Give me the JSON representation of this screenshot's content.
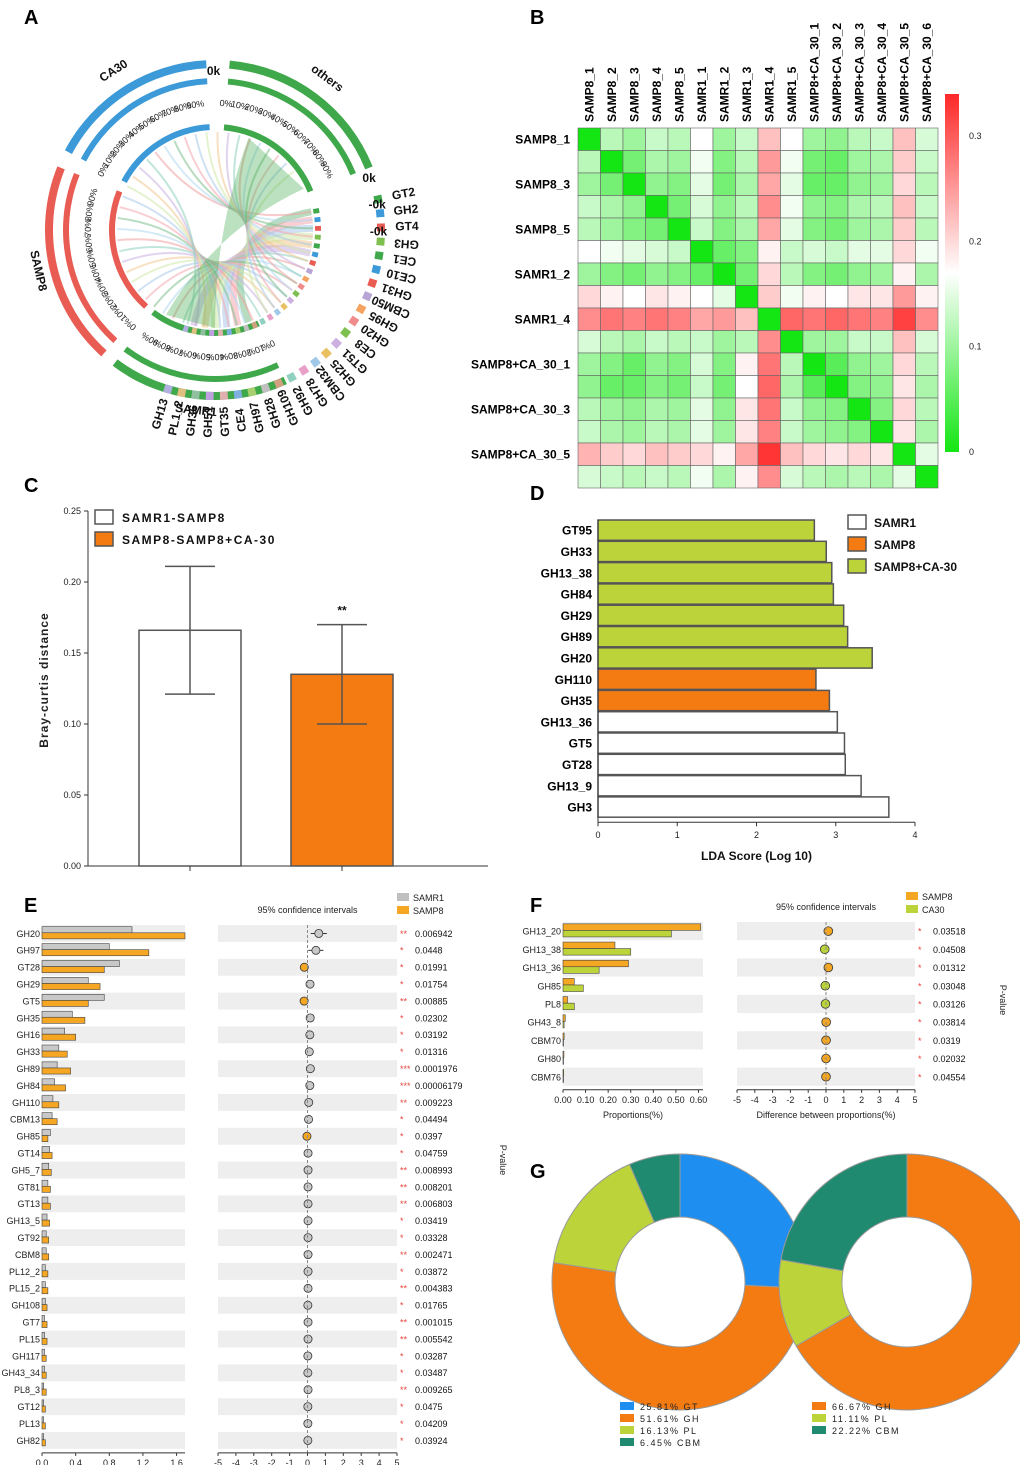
{
  "panel_labels": [
    "A",
    "B",
    "C",
    "D",
    "E",
    "F",
    "G"
  ],
  "chart_data": [
    {
      "id": "A",
      "type": "chord",
      "title": "",
      "segments": [
        {
          "name": "CA30",
          "color": "#3d9ad8"
        },
        {
          "name": "others",
          "color": "#3fa84a"
        },
        {
          "name": "SAMP8",
          "color": "#e85c54"
        },
        {
          "name": "SAMR1",
          "color": "#3fa84a"
        },
        {
          "name": "GT2",
          "color": "#3fa84a"
        },
        {
          "name": "GH2",
          "color": "#3d9ad8"
        },
        {
          "name": "GT4",
          "color": "#e85c54"
        },
        {
          "name": "GH3",
          "color": "#7ec050"
        },
        {
          "name": "CE1",
          "color": "#3fa84a"
        },
        {
          "name": "CE10",
          "color": "#3d9ad8"
        },
        {
          "name": "GH31",
          "color": "#e85c54"
        },
        {
          "name": "CBM50",
          "color": "#b9a4d6"
        },
        {
          "name": "GH95",
          "color": "#f4a460"
        },
        {
          "name": "GH20",
          "color": "#f08c8c"
        },
        {
          "name": "CE8",
          "color": "#7ec050"
        },
        {
          "name": "GT51",
          "color": "#cbb0e0"
        },
        {
          "name": "GH25",
          "color": "#e8c060"
        },
        {
          "name": "CBM32",
          "color": "#a0c8e8"
        },
        {
          "name": "GH78",
          "color": "#e8a0c8"
        },
        {
          "name": "GH92",
          "color": "#90d0c0"
        },
        {
          "name": "GH109",
          "color": "#d0a080"
        },
        {
          "name": "GH28",
          "color": "#c0c0c0"
        },
        {
          "name": "GH97",
          "color": "#a8d070"
        },
        {
          "name": "CE4",
          "color": "#80b0e0"
        },
        {
          "name": "GT35",
          "color": "#e0b0b0"
        },
        {
          "name": "GH51",
          "color": "#c0a0e0"
        },
        {
          "name": "GH36",
          "color": "#90c0a0"
        },
        {
          "name": "PL1_2",
          "color": "#e0c080"
        },
        {
          "name": "GH13",
          "color": "#b0b0e0"
        }
      ],
      "percent_ticks": [
        "0%",
        "10%",
        "20%",
        "30%",
        "40%",
        "50%",
        "60%",
        "70%",
        "80%",
        "90%"
      ],
      "zero_k": "0k",
      "minus_zero_k": "-0k"
    },
    {
      "id": "B",
      "type": "heatmap",
      "labels": [
        "SAMP8_1",
        "SAMP8_2",
        "SAMP8_3",
        "SAMP8_4",
        "SAMP8_5",
        "SAMR1_1",
        "SAMR1_2",
        "SAMR1_3",
        "SAMR1_4",
        "SAMR1_5",
        "SAMP8+CA_30_1",
        "SAMP8+CA_30_2",
        "SAMP8+CA_30_3",
        "SAMP8+CA_30_4",
        "SAMP8+CA_30_5",
        "SAMP8+CA_30_6"
      ],
      "row_labels_shown": [
        "SAMP8_1",
        "SAMP8_3",
        "SAMP8_5",
        "SAMR1_2",
        "SAMR1_4",
        "SAMP8+CA_30_1",
        "SAMP8+CA_30_3",
        "SAMP8+CA_30_5"
      ],
      "colorbar_ticks": [
        "0",
        "0.1",
        "0.2",
        "0.3"
      ],
      "vmin": 0,
      "vmax": 0.34,
      "values": [
        [
          0.0,
          0.12,
          0.1,
          0.13,
          0.12,
          0.17,
          0.1,
          0.13,
          0.22,
          0.17,
          0.1,
          0.09,
          0.12,
          0.13,
          0.22,
          0.14
        ],
        [
          0.12,
          0.0,
          0.07,
          0.11,
          0.1,
          0.16,
          0.08,
          0.12,
          0.25,
          0.16,
          0.07,
          0.06,
          0.1,
          0.11,
          0.21,
          0.13
        ],
        [
          0.1,
          0.07,
          0.0,
          0.09,
          0.08,
          0.15,
          0.07,
          0.11,
          0.24,
          0.15,
          0.06,
          0.06,
          0.09,
          0.1,
          0.2,
          0.12
        ],
        [
          0.13,
          0.11,
          0.09,
          0.0,
          0.07,
          0.14,
          0.09,
          0.12,
          0.26,
          0.16,
          0.09,
          0.08,
          0.11,
          0.12,
          0.22,
          0.13
        ],
        [
          0.12,
          0.1,
          0.08,
          0.07,
          0.0,
          0.13,
          0.08,
          0.11,
          0.24,
          0.15,
          0.08,
          0.07,
          0.1,
          0.11,
          0.21,
          0.12
        ],
        [
          0.17,
          0.16,
          0.15,
          0.14,
          0.13,
          0.0,
          0.06,
          0.08,
          0.18,
          0.13,
          0.14,
          0.13,
          0.15,
          0.15,
          0.2,
          0.16
        ],
        [
          0.1,
          0.08,
          0.07,
          0.09,
          0.08,
          0.06,
          0.0,
          0.07,
          0.2,
          0.12,
          0.08,
          0.07,
          0.09,
          0.1,
          0.18,
          0.11
        ],
        [
          0.2,
          0.18,
          0.17,
          0.19,
          0.18,
          0.17,
          0.15,
          0.0,
          0.21,
          0.16,
          0.18,
          0.17,
          0.19,
          0.19,
          0.25,
          0.18
        ],
        [
          0.26,
          0.28,
          0.27,
          0.28,
          0.27,
          0.24,
          0.25,
          0.22,
          0.0,
          0.29,
          0.28,
          0.29,
          0.28,
          0.27,
          0.32,
          0.26
        ],
        [
          0.14,
          0.12,
          0.11,
          0.13,
          0.12,
          0.13,
          0.1,
          0.12,
          0.26,
          0.0,
          0.1,
          0.1,
          0.13,
          0.13,
          0.22,
          0.14
        ],
        [
          0.1,
          0.08,
          0.06,
          0.09,
          0.08,
          0.14,
          0.08,
          0.18,
          0.28,
          0.12,
          0.0,
          0.05,
          0.09,
          0.1,
          0.2,
          0.12
        ],
        [
          0.09,
          0.06,
          0.06,
          0.08,
          0.07,
          0.13,
          0.07,
          0.17,
          0.29,
          0.11,
          0.05,
          0.0,
          0.08,
          0.09,
          0.19,
          0.11
        ],
        [
          0.12,
          0.1,
          0.09,
          0.11,
          0.1,
          0.15,
          0.09,
          0.19,
          0.28,
          0.13,
          0.09,
          0.08,
          0.0,
          0.08,
          0.2,
          0.12
        ],
        [
          0.13,
          0.11,
          0.1,
          0.12,
          0.11,
          0.15,
          0.1,
          0.19,
          0.27,
          0.13,
          0.1,
          0.09,
          0.08,
          0.0,
          0.19,
          0.11
        ],
        [
          0.23,
          0.21,
          0.2,
          0.22,
          0.21,
          0.2,
          0.18,
          0.24,
          0.33,
          0.22,
          0.2,
          0.19,
          0.2,
          0.19,
          0.0,
          0.15
        ],
        [
          0.14,
          0.13,
          0.12,
          0.13,
          0.12,
          0.16,
          0.11,
          0.18,
          0.26,
          0.14,
          0.12,
          0.11,
          0.12,
          0.11,
          0.15,
          0.0
        ]
      ]
    },
    {
      "id": "C",
      "type": "bar",
      "ylabel": "Bray-curtis distance",
      "ylim": [
        0,
        0.25
      ],
      "yticks": [
        "0.00",
        "0.05",
        "0.10",
        "0.15",
        "0.20",
        "0.25"
      ],
      "series": [
        {
          "name": "SAMR1-SAMP8",
          "value": 0.166,
          "err": 0.045,
          "color": "#ffffff"
        },
        {
          "name": "SAMP8-SAMP8+CA-30",
          "value": 0.135,
          "err": 0.035,
          "color": "#f47b12"
        }
      ],
      "annotation": "**"
    },
    {
      "id": "D",
      "type": "bar",
      "orientation": "horizontal",
      "xlabel": "LDA Score (Log 10)",
      "xlim": [
        0,
        4
      ],
      "xticks": [
        "0",
        "1",
        "2",
        "3",
        "4"
      ],
      "legend": [
        {
          "name": "SAMR1",
          "color": "#ffffff"
        },
        {
          "name": "SAMP8",
          "color": "#f47b12"
        },
        {
          "name": "SAMP8+CA-30",
          "color": "#bcd43a"
        }
      ],
      "categories": [
        "GT95",
        "GH33",
        "GH13_38",
        "GH84",
        "GH29",
        "GH89",
        "GH20",
        "GH110",
        "GH35",
        "GH13_36",
        "GT5",
        "GT28",
        "GH13_9",
        "GH3"
      ],
      "values": [
        2.73,
        2.88,
        2.95,
        2.97,
        3.1,
        3.15,
        3.46,
        2.75,
        2.92,
        3.02,
        3.11,
        3.12,
        3.32,
        3.67
      ],
      "groups": [
        "SAMP8+CA-30",
        "SAMP8+CA-30",
        "SAMP8+CA-30",
        "SAMP8+CA-30",
        "SAMP8+CA-30",
        "SAMP8+CA-30",
        "SAMP8+CA-30",
        "SAMP8",
        "SAMP8",
        "SAMR1",
        "SAMR1",
        "SAMR1",
        "SAMR1",
        "SAMR1"
      ]
    },
    {
      "id": "E",
      "type": "bar",
      "orientation": "horizontal",
      "legend": [
        {
          "name": "SAMR1",
          "color": "#c0c0c0"
        },
        {
          "name": "SAMP8",
          "color": "#f5a623"
        }
      ],
      "ci_title": "95% confidence intervals",
      "pvalue_label": "P-value",
      "xticks_left": [
        "0.0",
        "0.4",
        "0.8",
        "1.2",
        "1.6"
      ],
      "xlim_left": [
        0,
        1.7
      ],
      "xticks_right": [
        "-5",
        "-4",
        "-3",
        "-2",
        "-1",
        "0",
        "1",
        "2",
        "3",
        "4",
        "5"
      ],
      "categories": [
        "GH20",
        "GH97",
        "GT28",
        "GH29",
        "GT5",
        "GH35",
        "GH16",
        "GH33",
        "GH89",
        "GH84",
        "GH110",
        "CBM13",
        "GH85",
        "GT14",
        "GH5_7",
        "GT81",
        "GT13",
        "GH13_5",
        "GT92",
        "CBM8",
        "PL12_2",
        "PL15_2",
        "GH108",
        "GT7",
        "PL15",
        "GH117",
        "GH43_34",
        "PL8_3",
        "GT12",
        "PL13",
        "GH82"
      ],
      "samr1": [
        1.07,
        0.8,
        0.92,
        0.55,
        0.74,
        0.36,
        0.27,
        0.2,
        0.18,
        0.15,
        0.13,
        0.12,
        0.1,
        0.09,
        0.08,
        0.07,
        0.07,
        0.06,
        0.05,
        0.05,
        0.04,
        0.04,
        0.04,
        0.03,
        0.03,
        0.03,
        0.03,
        0.02,
        0.02,
        0.02,
        0.02
      ],
      "samp8": [
        1.7,
        1.27,
        0.74,
        0.69,
        0.55,
        0.51,
        0.4,
        0.3,
        0.34,
        0.28,
        0.2,
        0.18,
        0.07,
        0.12,
        0.11,
        0.1,
        0.1,
        0.09,
        0.08,
        0.08,
        0.07,
        0.07,
        0.06,
        0.06,
        0.06,
        0.05,
        0.05,
        0.05,
        0.04,
        0.04,
        0.04
      ],
      "diff": [
        0.63,
        0.47,
        -0.18,
        0.14,
        -0.19,
        0.15,
        0.13,
        0.1,
        0.16,
        0.13,
        0.07,
        0.06,
        -0.03,
        0.03,
        0.03,
        0.03,
        0.03,
        0.03,
        0.03,
        0.03,
        0.03,
        0.03,
        0.02,
        0.03,
        0.03,
        0.02,
        0.02,
        0.03,
        0.02,
        0.02,
        0.02
      ],
      "ci_half": [
        0.45,
        0.42,
        0.2,
        0.15,
        0.18,
        0.15,
        0.15,
        0.1,
        0.12,
        0.1,
        0.08,
        0.07,
        0.08,
        0.06,
        0.06,
        0.06,
        0.06,
        0.05,
        0.05,
        0.05,
        0.05,
        0.05,
        0.05,
        0.05,
        0.05,
        0.04,
        0.04,
        0.04,
        0.04,
        0.04,
        0.04
      ],
      "stars": [
        "**",
        "*",
        "*",
        "*",
        "**",
        "*",
        "*",
        "*",
        "***",
        "***",
        "**",
        "*",
        "*",
        "*",
        "**",
        "**",
        "**",
        "*",
        "*",
        "**",
        "*",
        "**",
        "*",
        "**",
        "**",
        "*",
        "*",
        "**",
        "*",
        "*",
        "*"
      ],
      "pvalues": [
        "0.006942",
        "0.0448",
        "0.01991",
        "0.01754",
        "0.00885",
        "0.02302",
        "0.03192",
        "0.01316",
        "0.0001976",
        "0.00006179",
        "0.009223",
        "0.04494",
        "0.0397",
        "0.04759",
        "0.008993",
        "0.008201",
        "0.006803",
        "0.03419",
        "0.03328",
        "0.002471",
        "0.03872",
        "0.004383",
        "0.01765",
        "0.001015",
        "0.005542",
        "0.03287",
        "0.03487",
        "0.009265",
        "0.0475",
        "0.04209",
        "0.03924"
      ]
    },
    {
      "id": "F",
      "type": "bar",
      "orientation": "horizontal",
      "legend": [
        {
          "name": "SAMP8",
          "color": "#f5a623"
        },
        {
          "name": "CA30",
          "color": "#bcd43a"
        }
      ],
      "ci_title": "95% confidence intervals",
      "pvalue_label": "P-value",
      "xlabel_left": "Proportions(%)",
      "xlabel_right": "Difference between proportions(%)",
      "xticks_left": [
        "0.00",
        "0.10",
        "0.20",
        "0.30",
        "0.40",
        "0.50",
        "0.60"
      ],
      "xlim_left": [
        0,
        0.62
      ],
      "xticks_right": [
        "-5",
        "-4",
        "-3",
        "-2",
        "-1",
        "0",
        "1",
        "2",
        "3",
        "4",
        "5"
      ],
      "categories": [
        "GH13_20",
        "GH13_38",
        "GH13_36",
        "GH85",
        "PL8",
        "GH43_8",
        "CBM70",
        "GH80",
        "CBM76"
      ],
      "samp8": [
        0.61,
        0.23,
        0.29,
        0.05,
        0.02,
        0.01,
        0.005,
        0.004,
        0.003
      ],
      "ca30": [
        0.48,
        0.3,
        0.16,
        0.09,
        0.05,
        0.005,
        0.002,
        0.002,
        0.002
      ],
      "diff": [
        0.13,
        -0.07,
        0.13,
        -0.04,
        -0.03,
        0.01,
        0.003,
        0.002,
        0.001
      ],
      "ci_half": [
        0.15,
        0.12,
        0.14,
        0.08,
        0.06,
        0.05,
        0.04,
        0.04,
        0.04
      ],
      "stars": [
        "*",
        "*",
        "*",
        "*",
        "*",
        "*",
        "*",
        "*",
        "*"
      ],
      "pvalues": [
        "0.03518",
        "0.04508",
        "0.01312",
        "0.03048",
        "0.03126",
        "0.03814",
        "0.0319",
        "0.02032",
        "0.04554"
      ]
    },
    {
      "id": "G",
      "type": "pie",
      "charts": [
        {
          "slices": [
            {
              "label": "25.81% GT",
              "value": 25.81,
              "color": "#1e8ff0"
            },
            {
              "label": "51.61% GH",
              "value": 51.61,
              "color": "#f47b12"
            },
            {
              "label": "16.13% PL",
              "value": 16.13,
              "color": "#bcd43a"
            },
            {
              "label": "6.45% CBM",
              "value": 6.45,
              "color": "#1f8a70"
            }
          ]
        },
        {
          "slices": [
            {
              "label": "66.67% GH",
              "value": 66.67,
              "color": "#f47b12"
            },
            {
              "label": "11.11% PL",
              "value": 11.11,
              "color": "#bcd43a"
            },
            {
              "label": "22.22% CBM",
              "value": 22.22,
              "color": "#1f8a70"
            }
          ]
        }
      ]
    }
  ]
}
